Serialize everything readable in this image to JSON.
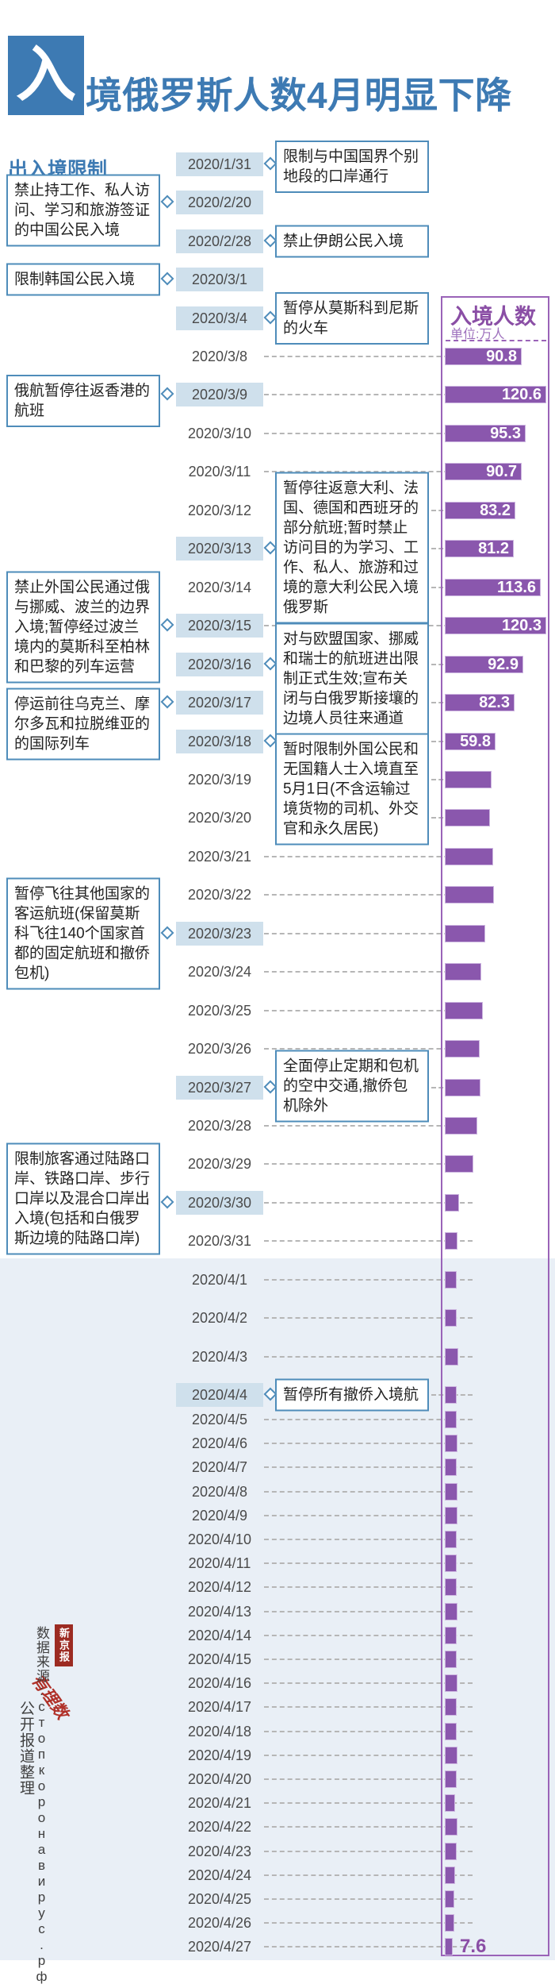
{
  "header": {
    "badge_char": "入",
    "title_rest": "境俄罗斯人数4月明显下降",
    "full_title": "入境俄罗斯人数4月明显下降",
    "left_section": "出入境限制"
  },
  "legend": {
    "title": "入境人数",
    "unit": "单位:万人"
  },
  "source": {
    "media_badge": "新京报",
    "media_script": "有理数",
    "line1": "数据来源:стопкоронавирус.рф",
    "line2": "公开报道整理"
  },
  "colors": {
    "blue": "#3d7ab3",
    "blue_border": "#4e8cba",
    "date_highlight": "#cfe0ec",
    "bar_purple": "#8a57ad",
    "purple_dark": "#8a4ea5",
    "purple_border": "#9a63b8",
    "april_band": "#e9eff6",
    "badge_red": "#9c2b22",
    "dash_gray": "#b6b6b6"
  },
  "chart_data": {
    "type": "bar",
    "orientation": "horizontal",
    "title": "入境人数",
    "unit": "万人",
    "value_note": "rows without a printed label show bars whose values are estimated from bar length",
    "rows": [
      {
        "date": "2020/1/31",
        "value": null,
        "label": null,
        "highlight": true,
        "annotation": {
          "side": "right",
          "text": "限制与中国国界个别地段的口岸通行"
        }
      },
      {
        "date": "2020/2/20",
        "value": null,
        "label": null,
        "highlight": true,
        "annotation": {
          "side": "left",
          "text": "禁止持工作、私人访问、学习和旅游签证的中国公民入境"
        }
      },
      {
        "date": "2020/2/28",
        "value": null,
        "label": null,
        "highlight": true,
        "annotation": {
          "side": "right",
          "text": "禁止伊朗公民入境"
        }
      },
      {
        "date": "2020/3/1",
        "value": null,
        "label": null,
        "highlight": true,
        "annotation": {
          "side": "left",
          "text": "限制韩国公民入境"
        }
      },
      {
        "date": "2020/3/4",
        "value": null,
        "label": null,
        "highlight": true,
        "annotation": {
          "side": "right",
          "text": "暂停从莫斯科到尼斯的火车"
        }
      },
      {
        "date": "2020/3/8",
        "value": 90.8,
        "label": "90.8",
        "highlight": false,
        "annotation": null
      },
      {
        "date": "2020/3/9",
        "value": 120.6,
        "label": "120.6",
        "highlight": true,
        "annotation": {
          "side": "left",
          "text": "俄航暂停往返香港的航班"
        }
      },
      {
        "date": "2020/3/10",
        "value": 95.3,
        "label": "95.3",
        "highlight": false,
        "annotation": null
      },
      {
        "date": "2020/3/11",
        "value": 90.7,
        "label": "90.7",
        "highlight": false,
        "annotation": null
      },
      {
        "date": "2020/3/12",
        "value": 83.2,
        "label": "83.2",
        "highlight": false,
        "annotation": null
      },
      {
        "date": "2020/3/13",
        "value": 81.2,
        "label": "81.2",
        "highlight": true,
        "annotation": {
          "side": "right",
          "text": "暂停往返意大利、法国、德国和西班牙的部分航班;暂时禁止访问目的为学习、工作、私人、旅游和过境的意大利公民入境俄罗斯"
        }
      },
      {
        "date": "2020/3/14",
        "value": 113.6,
        "label": "113.6",
        "highlight": false,
        "annotation": null
      },
      {
        "date": "2020/3/15",
        "value": 120.3,
        "label": "120.3",
        "highlight": true,
        "annotation": {
          "side": "left",
          "text": "禁止外国公民通过俄与挪威、波兰的边界入境;暂停经过波兰境内的莫斯科至柏林和巴黎的列车运营"
        }
      },
      {
        "date": "2020/3/16",
        "value": 92.9,
        "label": "92.9",
        "highlight": true,
        "annotation": {
          "side": "right",
          "text": "对与欧盟国家、挪威和瑞士的航班进出限制正式生效;宣布关闭与白俄罗斯接壤的边境人员往来通道"
        }
      },
      {
        "date": "2020/3/17",
        "value": 82.3,
        "label": "82.3",
        "highlight": true,
        "annotation": {
          "side": "left",
          "text": "停运前往乌克兰、摩尔多瓦和拉脱维亚的的国际列车"
        }
      },
      {
        "date": "2020/3/18",
        "value": 59.8,
        "label": "59.8",
        "highlight": true,
        "annotation": {
          "side": "right",
          "text": "暂时限制外国公民和无国籍人士入境直至5月1日(不含运输过境货物的司机、外交官和永久居民)"
        }
      },
      {
        "date": "2020/3/19",
        "value": 55,
        "label": null,
        "highlight": false,
        "annotation": null
      },
      {
        "date": "2020/3/20",
        "value": 53,
        "label": null,
        "highlight": false,
        "annotation": null
      },
      {
        "date": "2020/3/21",
        "value": 56,
        "label": null,
        "highlight": false,
        "annotation": null
      },
      {
        "date": "2020/3/22",
        "value": 57,
        "label": null,
        "highlight": false,
        "annotation": null
      },
      {
        "date": "2020/3/23",
        "value": 47,
        "label": null,
        "highlight": true,
        "annotation": {
          "side": "left",
          "text": "暂停飞往其他国家的客运航班(保留莫斯科飞往140个国家首都的固定航班和撤侨包机)"
        }
      },
      {
        "date": "2020/3/24",
        "value": 42,
        "label": null,
        "highlight": false,
        "annotation": null
      },
      {
        "date": "2020/3/25",
        "value": 44,
        "label": null,
        "highlight": false,
        "annotation": null
      },
      {
        "date": "2020/3/26",
        "value": 40,
        "label": null,
        "highlight": false,
        "annotation": null
      },
      {
        "date": "2020/3/27",
        "value": 41,
        "label": null,
        "highlight": true,
        "annotation": {
          "side": "right",
          "text": "全面停止定期和包机的空中交通,撤侨包机除外"
        }
      },
      {
        "date": "2020/3/28",
        "value": 37,
        "label": null,
        "highlight": false,
        "annotation": null
      },
      {
        "date": "2020/3/29",
        "value": 33,
        "label": null,
        "highlight": false,
        "annotation": null
      },
      {
        "date": "2020/3/30",
        "value": 15,
        "label": null,
        "highlight": true,
        "annotation": {
          "side": "left",
          "text": "限制旅客通过陆路口岸、铁路口岸、步行口岸以及混合口岸出入境(包括和白俄罗斯边境的陆路口岸)"
        }
      },
      {
        "date": "2020/3/31",
        "value": 13,
        "label": null,
        "highlight": false,
        "annotation": null
      },
      {
        "date": "2020/4/1",
        "value": 12,
        "label": null,
        "highlight": false,
        "annotation": null
      },
      {
        "date": "2020/4/2",
        "value": 12,
        "label": null,
        "highlight": false,
        "annotation": null
      },
      {
        "date": "2020/4/3",
        "value": 14,
        "label": null,
        "highlight": false,
        "annotation": null
      },
      {
        "date": "2020/4/4",
        "value": 12,
        "label": null,
        "highlight": true,
        "annotation": {
          "side": "right",
          "text": "暂停所有撤侨入境航"
        }
      },
      {
        "date": "2020/4/5",
        "value": 12,
        "label": null,
        "highlight": false,
        "annotation": null
      },
      {
        "date": "2020/4/6",
        "value": 13,
        "label": null,
        "highlight": false,
        "annotation": null
      },
      {
        "date": "2020/4/7",
        "value": 12,
        "label": null,
        "highlight": false,
        "annotation": null
      },
      {
        "date": "2020/4/8",
        "value": 13,
        "label": null,
        "highlight": false,
        "annotation": null
      },
      {
        "date": "2020/4/9",
        "value": 13,
        "label": null,
        "highlight": false,
        "annotation": null
      },
      {
        "date": "2020/4/10",
        "value": 12,
        "label": null,
        "highlight": false,
        "annotation": null
      },
      {
        "date": "2020/4/11",
        "value": 12,
        "label": null,
        "highlight": false,
        "annotation": null
      },
      {
        "date": "2020/4/12",
        "value": 12,
        "label": null,
        "highlight": false,
        "annotation": null
      },
      {
        "date": "2020/4/13",
        "value": 13,
        "label": null,
        "highlight": false,
        "annotation": null
      },
      {
        "date": "2020/4/14",
        "value": 12,
        "label": null,
        "highlight": false,
        "annotation": null
      },
      {
        "date": "2020/4/15",
        "value": 12,
        "label": null,
        "highlight": false,
        "annotation": null
      },
      {
        "date": "2020/4/16",
        "value": 13,
        "label": null,
        "highlight": false,
        "annotation": null
      },
      {
        "date": "2020/4/17",
        "value": 12,
        "label": null,
        "highlight": false,
        "annotation": null
      },
      {
        "date": "2020/4/18",
        "value": 12,
        "label": null,
        "highlight": false,
        "annotation": null
      },
      {
        "date": "2020/4/19",
        "value": 13,
        "label": null,
        "highlight": false,
        "annotation": null
      },
      {
        "date": "2020/4/20",
        "value": 12,
        "label": null,
        "highlight": false,
        "annotation": null
      },
      {
        "date": "2020/4/21",
        "value": 11,
        "label": null,
        "highlight": false,
        "annotation": null
      },
      {
        "date": "2020/4/22",
        "value": 13,
        "label": null,
        "highlight": false,
        "annotation": null
      },
      {
        "date": "2020/4/23",
        "value": 12,
        "label": null,
        "highlight": false,
        "annotation": null
      },
      {
        "date": "2020/4/24",
        "value": 11,
        "label": null,
        "highlight": false,
        "annotation": null
      },
      {
        "date": "2020/4/25",
        "value": 10,
        "label": null,
        "highlight": false,
        "annotation": null
      },
      {
        "date": "2020/4/26",
        "value": 10,
        "label": null,
        "highlight": false,
        "annotation": null
      },
      {
        "date": "2020/4/27",
        "value": 7.6,
        "label": "7.6",
        "highlight": false,
        "annotation": null,
        "label_outside": true
      }
    ]
  }
}
